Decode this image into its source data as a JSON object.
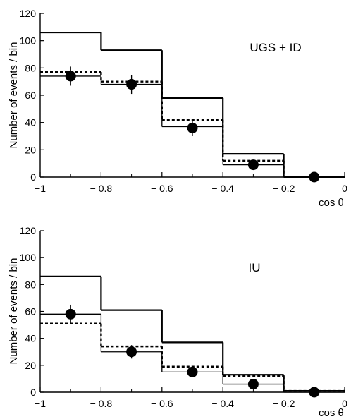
{
  "chart_data": [
    {
      "type": "histogram",
      "annotation": "UGS + ID",
      "xlabel": "cos θ",
      "ylabel": "Number of events / bin",
      "xlim": [
        -1,
        0
      ],
      "ylim": [
        0,
        120
      ],
      "xticks": [
        -1,
        -0.8,
        -0.6,
        -0.4,
        -0.2,
        0
      ],
      "xtick_labels": [
        "−1",
        "− 0.8",
        "− 0.6",
        "− 0.4",
        "− 0.2",
        "0"
      ],
      "yticks": [
        0,
        20,
        40,
        60,
        80,
        100,
        120
      ],
      "ytick_labels": [
        "0",
        "20",
        "40",
        "60",
        "80",
        "100",
        "120"
      ],
      "bin_edges": [
        -1,
        -0.8,
        -0.6,
        -0.4,
        -0.2,
        0
      ],
      "series": [
        {
          "style": "solid-thick",
          "values": [
            106,
            93,
            58,
            17,
            0
          ]
        },
        {
          "style": "dashed",
          "values": [
            77,
            70,
            42,
            12,
            0
          ]
        },
        {
          "style": "solid-thin",
          "values": [
            74,
            68,
            37,
            9,
            0
          ]
        }
      ],
      "points": {
        "x": [
          -0.9,
          -0.7,
          -0.5,
          -0.3,
          -0.1
        ],
        "y": [
          74,
          68,
          36,
          9,
          0
        ],
        "err": [
          7,
          7,
          6,
          3,
          1
        ]
      }
    },
    {
      "type": "histogram",
      "annotation": "IU",
      "xlabel": "cos θ",
      "ylabel": "Number of events / bin",
      "xlim": [
        -1,
        0
      ],
      "ylim": [
        0,
        120
      ],
      "xticks": [
        -1,
        -0.8,
        -0.6,
        -0.4,
        -0.2,
        0
      ],
      "xtick_labels": [
        "−1",
        "− 0.8",
        "− 0.6",
        "− 0.4",
        "− 0.2",
        "0"
      ],
      "yticks": [
        0,
        20,
        40,
        60,
        80,
        100,
        120
      ],
      "ytick_labels": [
        "0",
        "20",
        "40",
        "60",
        "80",
        "100",
        "120"
      ],
      "bin_edges": [
        -1,
        -0.8,
        -0.6,
        -0.4,
        -0.2,
        0
      ],
      "series": [
        {
          "style": "solid-thick",
          "values": [
            86,
            61,
            37,
            13,
            1
          ]
        },
        {
          "style": "dashed",
          "values": [
            51,
            34,
            19,
            12,
            1
          ]
        },
        {
          "style": "solid-thin",
          "values": [
            58,
            30,
            15,
            6,
            0
          ]
        }
      ],
      "points": {
        "x": [
          -0.9,
          -0.7,
          -0.5,
          -0.3,
          -0.1
        ],
        "y": [
          58,
          30,
          15,
          6,
          0
        ],
        "err": [
          7,
          5,
          4,
          2,
          1
        ]
      }
    }
  ]
}
